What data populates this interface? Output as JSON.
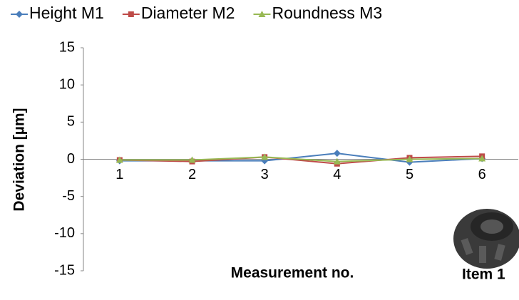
{
  "chart_data": {
    "type": "line",
    "y_label": "Deviation [µm]",
    "x_label": "Measurement no.",
    "annotation": "Item 1",
    "categories": [
      "1",
      "2",
      "3",
      "4",
      "5",
      "6"
    ],
    "series": [
      {
        "name": "Height M1",
        "color": "#4a7ebb",
        "marker": "diamond",
        "values": [
          -0.2,
          -0.2,
          -0.2,
          0.8,
          -0.4,
          0.1
        ]
      },
      {
        "name": "Diameter M2",
        "color": "#be4b48",
        "marker": "square",
        "values": [
          -0.1,
          -0.3,
          0.3,
          -0.6,
          0.2,
          0.4
        ]
      },
      {
        "name": "Roundness M3",
        "color": "#98b954",
        "marker": "triangle",
        "values": [
          -0.1,
          -0.1,
          0.3,
          -0.3,
          0.0,
          0.1
        ]
      }
    ],
    "ylim": [
      -15,
      15
    ],
    "yticks": [
      -15,
      -10,
      -5,
      0,
      5,
      10,
      15
    ],
    "grid": false,
    "legend": "top"
  }
}
